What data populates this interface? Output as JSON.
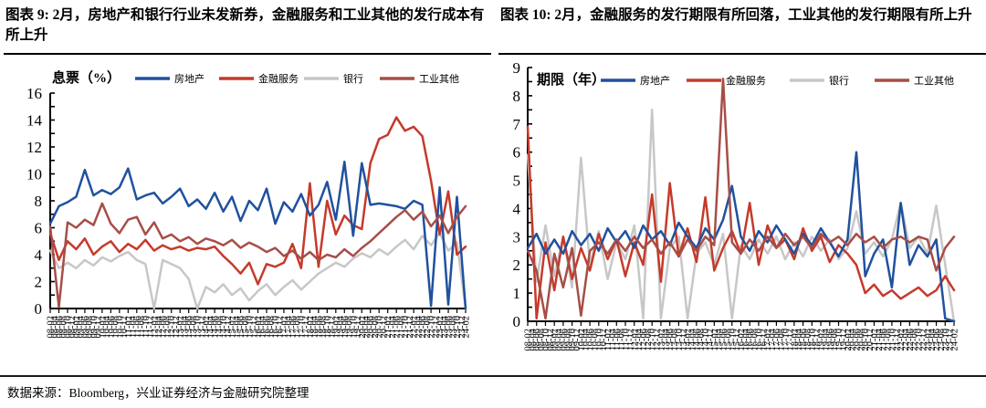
{
  "header": {
    "left_title": "图表 9: 2月，房地产和银行行业未发新券，金融服务和工业其他的发行成本有所上升",
    "right_title": "图表 10: 2月，金融服务的发行期限有所回落，工业其他的发行期限有所上升"
  },
  "footer": {
    "source": "数据来源：Bloomberg，兴业证券经济与金融研究院整理"
  },
  "colors": {
    "real_estate": "#20519E",
    "financial_services": "#C53A2B",
    "banks": "#C7C7C7",
    "industrial_other": "#A64E47",
    "axis": "#000000"
  },
  "x_axis_labels": [
    "08-02",
    "08-04",
    "08-06",
    "08-08",
    "08-10",
    "08-12",
    "09-02",
    "09-04",
    "09-06",
    "09-08",
    "09-10",
    "09-12",
    "10-02",
    "10-04",
    "10-06",
    "10-08",
    "10-10",
    "10-12",
    "11-02",
    "11-04",
    "11-06",
    "11-08",
    "11-10",
    "11-12",
    "12-02",
    "12-04",
    "12-06",
    "12-08",
    "12-10",
    "12-12",
    "13-02",
    "13-04",
    "13-06",
    "13-08",
    "13-10",
    "13-12",
    "14-02",
    "14-04",
    "14-06",
    "14-08",
    "14-10",
    "14-12",
    "15-02",
    "15-04",
    "15-06",
    "15-08",
    "15-10",
    "15-12",
    "16-02",
    "16-04",
    "16-06",
    "16-08",
    "16-10",
    "16-12",
    "17-02",
    "17-04",
    "17-06",
    "17-08",
    "17-10",
    "17-12",
    "18-02",
    "18-04",
    "18-06",
    "18-08",
    "18-10",
    "18-12",
    "19-02",
    "19-04",
    "19-06",
    "19-08",
    "19-10",
    "19-12",
    "20-02",
    "20-04",
    "20-06",
    "20-08",
    "20-10",
    "20-12",
    "21-02",
    "21-04",
    "21-06",
    "21-08",
    "21-10",
    "21-12",
    "22-02",
    "22-04",
    "22-06",
    "22-08",
    "22-10",
    "22-12",
    "23-02",
    "23-04",
    "23-06",
    "23-08",
    "23-10",
    "23-12",
    "24-02"
  ],
  "chart_data": [
    {
      "key": "coupon",
      "type": "line",
      "axis_title": "息票（%）",
      "ylim": [
        0,
        16
      ],
      "ytick_minor": 1,
      "ytick_label": 2,
      "grid": false,
      "legend_position": "top",
      "x": [
        "08-02",
        "08-06",
        "08-10",
        "09-02",
        "09-06",
        "09-10",
        "10-02",
        "10-06",
        "10-10",
        "11-02",
        "11-06",
        "11-10",
        "12-02",
        "12-06",
        "12-10",
        "13-02",
        "13-06",
        "13-10",
        "14-02",
        "14-06",
        "14-10",
        "15-02",
        "15-06",
        "15-10",
        "16-02",
        "16-06",
        "16-10",
        "17-02",
        "17-06",
        "17-10",
        "18-02",
        "18-06",
        "18-10",
        "19-02",
        "19-06",
        "19-10",
        "20-02",
        "20-06",
        "20-10",
        "21-02",
        "21-06",
        "21-10",
        "22-02",
        "22-06",
        "22-10",
        "23-02",
        "23-06",
        "23-10",
        "24-02"
      ],
      "series": [
        {
          "key": "real-estate",
          "name": "房地产",
          "color": "#20519E",
          "values": [
            6.3,
            7.6,
            7.9,
            8.3,
            10.3,
            8.4,
            8.8,
            8.5,
            9.0,
            10.4,
            8.1,
            8.4,
            8.6,
            7.8,
            8.3,
            8.9,
            7.6,
            8.1,
            7.4,
            8.6,
            7.2,
            8.3,
            6.5,
            8.0,
            7.3,
            8.9,
            6.3,
            7.9,
            7.2,
            8.5,
            6.9,
            7.7,
            9.4,
            6.6,
            10.9,
            5.4,
            10.8,
            7.7,
            7.8,
            7.7,
            7.6,
            7.4,
            8.0,
            7.7,
            0.2,
            9.0,
            0.3,
            8.3,
            0.0
          ]
        },
        {
          "key": "financial-services",
          "name": "金融服务",
          "color": "#C53A2B",
          "values": [
            5.6,
            3.6,
            5.0,
            4.4,
            5.2,
            4.0,
            4.6,
            5.0,
            4.2,
            4.8,
            4.4,
            5.1,
            4.3,
            4.7,
            4.4,
            4.6,
            4.3,
            4.5,
            4.4,
            4.6,
            3.9,
            3.3,
            2.6,
            3.4,
            1.8,
            3.3,
            3.1,
            3.4,
            4.8,
            3.0,
            9.3,
            3.1,
            8.0,
            5.5,
            6.9,
            6.2,
            5.9,
            10.8,
            12.6,
            12.9,
            14.2,
            13.2,
            13.5,
            12.8,
            9.5,
            5.5,
            8.7,
            4.0,
            4.6
          ]
        },
        {
          "key": "banks",
          "name": "银行",
          "color": "#C7C7C7",
          "values": [
            4.3,
            3.0,
            3.4,
            3.0,
            3.6,
            3.2,
            3.8,
            3.5,
            3.9,
            4.2,
            3.6,
            3.3,
            0.0,
            3.6,
            3.3,
            3.0,
            2.2,
            0.0,
            1.6,
            1.2,
            1.8,
            1.0,
            1.5,
            0.6,
            1.3,
            1.8,
            1.0,
            1.6,
            2.1,
            1.4,
            2.0,
            2.6,
            3.0,
            3.4,
            3.1,
            3.7,
            4.1,
            3.8,
            4.4,
            4.0,
            4.6,
            5.1,
            4.4,
            5.4,
            4.7,
            5.6,
            4.3,
            4.9,
            0.0
          ]
        },
        {
          "key": "industrial-other",
          "name": "工业其他",
          "color": "#A64E47",
          "values": [
            6.1,
            0.1,
            6.4,
            6.0,
            6.6,
            6.2,
            7.8,
            6.3,
            5.6,
            6.6,
            6.8,
            5.5,
            6.4,
            5.2,
            5.5,
            5.0,
            5.3,
            4.8,
            5.2,
            5.0,
            4.7,
            5.1,
            4.5,
            4.9,
            4.6,
            4.2,
            4.5,
            3.9,
            4.3,
            3.7,
            4.2,
            3.6,
            4.0,
            3.8,
            4.4,
            3.9,
            4.5,
            5.0,
            5.6,
            6.2,
            6.8,
            7.3,
            6.6,
            7.2,
            6.1,
            6.9,
            5.6,
            6.8,
            7.6
          ]
        }
      ]
    },
    {
      "key": "tenor",
      "type": "line",
      "axis_title": "期限（年）",
      "ylim": [
        0,
        9
      ],
      "ytick_minor": 0.5,
      "ytick_label": 1,
      "grid": false,
      "legend_position": "top",
      "x": [
        "08-02",
        "08-06",
        "08-10",
        "09-02",
        "09-06",
        "09-10",
        "10-02",
        "10-06",
        "10-10",
        "11-02",
        "11-06",
        "11-10",
        "12-02",
        "12-06",
        "12-10",
        "13-02",
        "13-06",
        "13-10",
        "14-02",
        "14-06",
        "14-10",
        "15-02",
        "15-06",
        "15-10",
        "16-02",
        "16-06",
        "16-10",
        "17-02",
        "17-06",
        "17-10",
        "18-02",
        "18-06",
        "18-10",
        "19-02",
        "19-06",
        "19-10",
        "20-02",
        "20-06",
        "20-10",
        "21-02",
        "21-06",
        "21-10",
        "22-02",
        "22-06",
        "22-10",
        "23-02",
        "23-06",
        "23-10",
        "24-02"
      ],
      "series": [
        {
          "key": "real-estate",
          "name": "房地产",
          "color": "#20519E",
          "values": [
            2.6,
            3.1,
            2.4,
            2.9,
            2.4,
            3.2,
            2.7,
            3.1,
            2.5,
            3.3,
            2.8,
            3.2,
            2.6,
            3.4,
            2.9,
            3.2,
            2.7,
            3.5,
            3.0,
            2.6,
            3.3,
            2.9,
            3.6,
            4.8,
            3.0,
            2.5,
            3.2,
            2.8,
            3.4,
            2.9,
            2.4,
            3.1,
            2.7,
            3.3,
            2.8,
            2.3,
            2.9,
            6.0,
            1.6,
            2.4,
            2.9,
            1.2,
            4.2,
            2.0,
            2.7,
            2.3,
            2.9,
            0.1,
            0.0
          ]
        },
        {
          "key": "financial-services",
          "name": "金融服务",
          "color": "#C53A2B",
          "values": [
            6.9,
            0.1,
            2.8,
            1.1,
            3.0,
            1.5,
            2.6,
            1.8,
            3.1,
            2.2,
            2.9,
            1.6,
            2.8,
            2.0,
            4.5,
            1.4,
            4.9,
            2.3,
            3.3,
            2.1,
            4.4,
            1.8,
            2.6,
            3.2,
            2.4,
            4.2,
            2.0,
            3.4,
            2.6,
            2.9,
            2.2,
            3.3,
            2.5,
            3.0,
            2.1,
            2.7,
            2.4,
            2.0,
            1.0,
            1.3,
            0.9,
            1.1,
            0.8,
            1.0,
            1.2,
            0.9,
            1.1,
            1.6,
            1.1
          ]
        },
        {
          "key": "banks",
          "name": "银行",
          "color": "#C7C7C7",
          "values": [
            5.9,
            1.4,
            3.4,
            1.6,
            3.0,
            1.2,
            5.8,
            2.0,
            3.2,
            1.5,
            2.8,
            2.2,
            3.4,
            0.1,
            7.5,
            0.1,
            2.6,
            3.0,
            0.1,
            2.4,
            2.8,
            2.0,
            3.1,
            0.1,
            2.7,
            2.2,
            2.9,
            2.4,
            3.0,
            2.2,
            2.8,
            2.3,
            3.0,
            2.5,
            2.9,
            2.2,
            2.6,
            3.9,
            2.4,
            2.8,
            2.3,
            2.9,
            4.2,
            2.6,
            3.0,
            2.4,
            4.1,
            2.0,
            0.0
          ]
        },
        {
          "key": "industrial-other",
          "name": "工业其他",
          "color": "#A64E47",
          "values": [
            2.5,
            1.8,
            0.1,
            2.4,
            1.2,
            2.6,
            0.2,
            2.5,
            2.8,
            2.4,
            2.9,
            2.5,
            3.0,
            2.6,
            2.9,
            2.4,
            2.8,
            2.3,
            2.9,
            2.5,
            3.0,
            2.7,
            8.6,
            2.8,
            2.4,
            2.9,
            2.5,
            3.0,
            2.6,
            3.1,
            2.7,
            3.0,
            2.6,
            3.1,
            2.8,
            3.0,
            2.7,
            3.1,
            2.8,
            3.0,
            2.6,
            2.9,
            3.0,
            2.8,
            3.0,
            2.9,
            1.8,
            2.6,
            3.0
          ]
        }
      ]
    }
  ]
}
